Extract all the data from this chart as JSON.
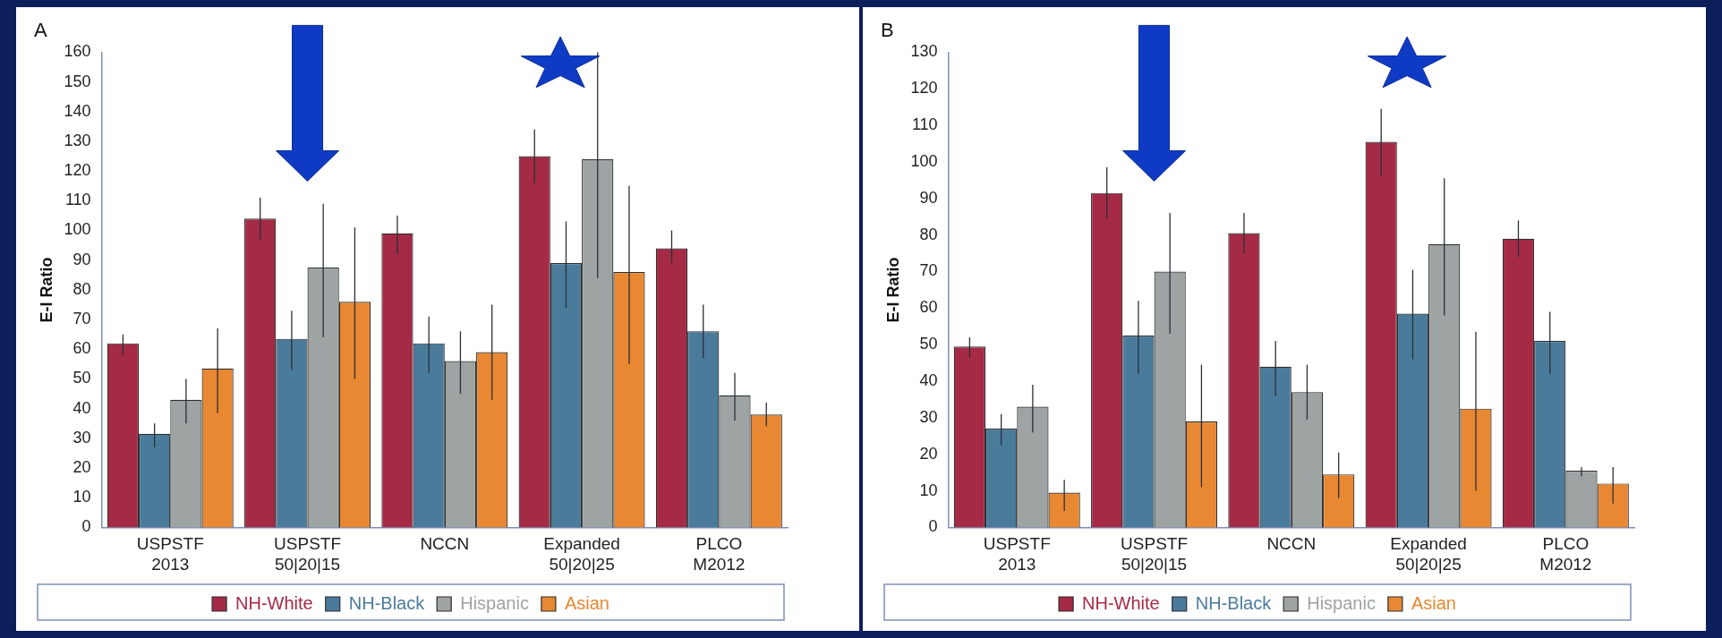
{
  "chart_data": [
    {
      "type": "bar",
      "title": "A",
      "ylabel": "E-I Ratio",
      "categories": [
        "USPSTF\n2013",
        "USPSTF\n50|20|15",
        "NCCN",
        "Expanded\n50|20|25",
        "PLCO\nM2012"
      ],
      "ylim": [
        0,
        160
      ],
      "yticks": [
        0,
        10,
        20,
        30,
        40,
        50,
        60,
        70,
        80,
        90,
        100,
        110,
        120,
        130,
        140,
        150,
        160
      ],
      "grid": false,
      "legend": "bottom",
      "series": [
        {
          "name": "NH-White",
          "color": "#a52a45",
          "values": [
            62,
            104,
            99,
            125,
            94
          ],
          "errors": [
            [
              58,
              65
            ],
            [
              97,
              111
            ],
            [
              92,
              105
            ],
            [
              116,
              134
            ],
            [
              89,
              100
            ]
          ]
        },
        {
          "name": "NH-Black",
          "color": "#4a7b9b",
          "values": [
            31.5,
            63.5,
            62,
            89,
            66
          ],
          "errors": [
            [
              27,
              35
            ],
            [
              53,
              73
            ],
            [
              52,
              71
            ],
            [
              74,
              103
            ],
            [
              57,
              75
            ]
          ]
        },
        {
          "name": "Hispanic",
          "color": "#9ea3a3",
          "values": [
            43,
            87.5,
            56,
            124,
            44.5
          ],
          "errors": [
            [
              35,
              50
            ],
            [
              64,
              109
            ],
            [
              45,
              66
            ],
            [
              84,
              160
            ],
            [
              36,
              52
            ]
          ]
        },
        {
          "name": "Asian",
          "color": "#e88832",
          "values": [
            53.5,
            76,
            59,
            86,
            38
          ],
          "errors": [
            [
              38.5,
              67
            ],
            [
              50,
              101
            ],
            [
              43,
              75
            ],
            [
              55,
              115
            ],
            [
              34,
              42
            ]
          ]
        }
      ]
    },
    {
      "type": "bar",
      "title": "B",
      "ylabel": "E-I Ratio",
      "categories": [
        "USPSTF\n2013",
        "USPSTF\n50|20|15",
        "NCCN",
        "Expanded\n50|20|25",
        "PLCO\nM2012"
      ],
      "ylim": [
        0,
        130
      ],
      "yticks": [
        0,
        10,
        20,
        30,
        40,
        50,
        60,
        70,
        80,
        90,
        100,
        110,
        120,
        130
      ],
      "grid": false,
      "legend": "bottom",
      "series": [
        {
          "name": "NH-White",
          "color": "#a52a45",
          "values": [
            49.5,
            91.5,
            80.5,
            105.5,
            79
          ],
          "errors": [
            [
              46.5,
              52
            ],
            [
              84.5,
              98.5
            ],
            [
              75,
              86
            ],
            [
              96,
              114.5
            ],
            [
              74,
              84
            ]
          ]
        },
        {
          "name": "NH-Black",
          "color": "#4a7b9b",
          "values": [
            27,
            52.5,
            44,
            58.5,
            51
          ],
          "errors": [
            [
              22.5,
              31
            ],
            [
              42,
              62
            ],
            [
              36,
              51
            ],
            [
              46,
              70.5
            ],
            [
              42,
              59
            ]
          ]
        },
        {
          "name": "Hispanic",
          "color": "#9ea3a3",
          "values": [
            33,
            70,
            37,
            77.5,
            15.5
          ],
          "errors": [
            [
              26,
              39
            ],
            [
              53,
              86
            ],
            [
              29.5,
              44.5
            ],
            [
              58,
              95.5
            ],
            [
              14,
              16.5
            ]
          ]
        },
        {
          "name": "Asian",
          "color": "#e88832",
          "values": [
            9.5,
            29,
            14.5,
            32.5,
            12
          ],
          "errors": [
            [
              4.5,
              13
            ],
            [
              11,
              44.5
            ],
            [
              8,
              20.5
            ],
            [
              10,
              53.5
            ],
            [
              6.5,
              16.5
            ]
          ]
        }
      ]
    }
  ]
}
